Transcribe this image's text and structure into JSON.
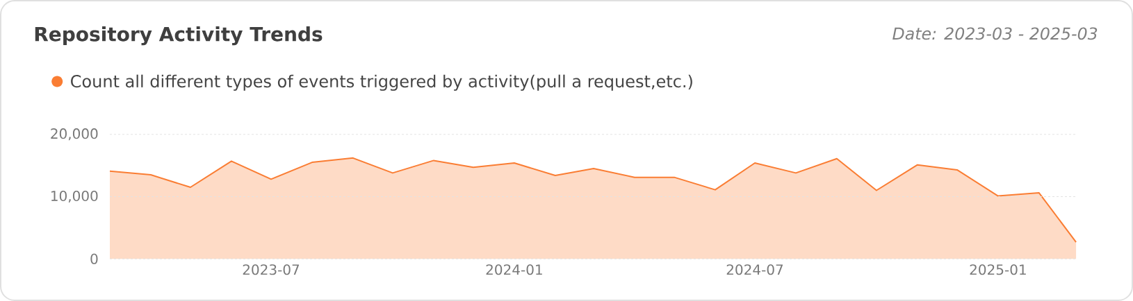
{
  "chart_data": {
    "type": "area",
    "title": "Repository Activity Trends",
    "subtitle": "Date: 2023-03 - 2025-03",
    "x": [
      "2023-03",
      "2023-04",
      "2023-05",
      "2023-06",
      "2023-07",
      "2023-08",
      "2023-09",
      "2023-10",
      "2023-11",
      "2023-12",
      "2024-01",
      "2024-02",
      "2024-03",
      "2024-04",
      "2024-05",
      "2024-06",
      "2024-07",
      "2024-08",
      "2024-09",
      "2024-10",
      "2024-11",
      "2024-12",
      "2025-01",
      "2025-02",
      "2025-03"
    ],
    "series": [
      {
        "name": "Count all different types of events triggered by activity(pull a request,etc.)",
        "color": "#fa7d33",
        "values": [
          14100,
          13500,
          11500,
          15700,
          12800,
          15500,
          16200,
          13800,
          15800,
          14700,
          15400,
          13400,
          14500,
          13100,
          13100,
          11100,
          15400,
          13800,
          16100,
          11000,
          15100,
          14300,
          10100,
          10600,
          2700
        ]
      }
    ],
    "xlim": [
      "2023-03",
      "2025-03"
    ],
    "xticks": [
      "2023-07",
      "2024-01",
      "2024-07",
      "2025-01"
    ],
    "ylim": [
      0,
      20000
    ],
    "yticks": [
      0,
      {
        "value": 10000,
        "label": "10,000"
      },
      {
        "value": 20000,
        "label": "20,000"
      }
    ],
    "grid": "y",
    "legend": "top left"
  }
}
